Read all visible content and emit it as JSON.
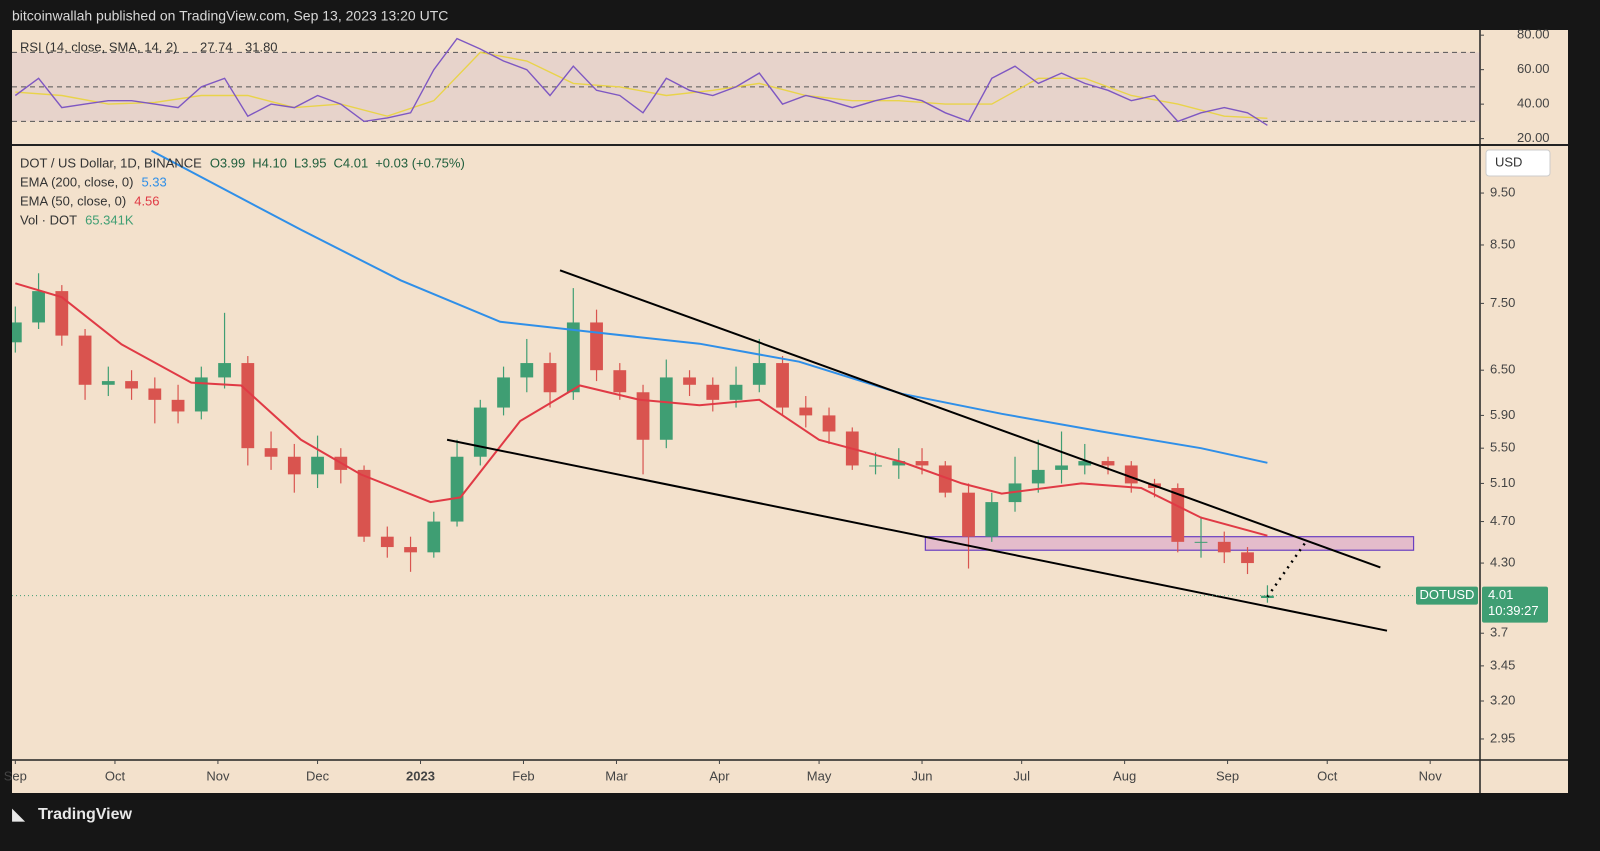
{
  "header": {
    "text": "bitcoinwallah published on TradingView.com, Sep 13, 2023 13:20 UTC"
  },
  "footer": {
    "brand": "TradingView"
  },
  "chart_data": [
    {
      "type": "rsi",
      "legend": {
        "title": "RSI (14, close, SMA, 14, 2)",
        "rsi": "27.74",
        "sma": "31.80"
      },
      "xlim": [
        -1,
        441
      ],
      "ylim": [
        16.3,
        83
      ],
      "yticks": [
        {
          "value": 80,
          "label": "80.00"
        },
        {
          "value": 60,
          "label": "60.00"
        },
        {
          "value": 40,
          "label": "40.00"
        },
        {
          "value": 20,
          "label": "20.00"
        }
      ],
      "levels": [
        70,
        50,
        30
      ],
      "series": [
        {
          "color": "#7e57c2",
          "x": [
            0,
            7,
            14,
            21,
            28,
            35,
            42,
            49,
            56,
            63,
            70,
            77,
            84,
            91,
            98,
            105,
            112,
            119,
            126,
            133,
            140,
            147,
            154,
            161,
            168,
            175,
            182,
            189,
            196,
            203,
            210,
            217,
            224,
            231,
            238,
            245,
            252,
            259,
            266,
            273,
            280,
            287,
            294,
            301,
            308,
            315,
            322,
            329,
            336,
            343,
            350,
            357,
            364,
            371,
            377
          ],
          "values": [
            45,
            55,
            38,
            40,
            42,
            42,
            40,
            38,
            50,
            55,
            33,
            40,
            38,
            45,
            40,
            30,
            32,
            35,
            60,
            78,
            72,
            65,
            60,
            45,
            62,
            48,
            45,
            35,
            55,
            48,
            45,
            50,
            58,
            40,
            45,
            42,
            38,
            42,
            45,
            42,
            35,
            30,
            55,
            62,
            52,
            58,
            52,
            48,
            42,
            45,
            30,
            35,
            38,
            35,
            27.74
          ]
        },
        {
          "color": "#e9d34a",
          "x": [
            0,
            14,
            28,
            42,
            56,
            70,
            84,
            98,
            112,
            126,
            140,
            154,
            168,
            182,
            196,
            210,
            224,
            238,
            252,
            266,
            280,
            294,
            308,
            322,
            336,
            350,
            364,
            377
          ],
          "values": [
            47,
            45,
            40,
            41,
            45,
            45,
            38,
            40,
            33,
            42,
            70,
            65,
            52,
            50,
            45,
            48,
            52,
            45,
            42,
            42,
            40,
            40,
            55,
            55,
            45,
            40,
            33,
            31.8
          ]
        }
      ]
    },
    {
      "type": "candlestick",
      "legend": {
        "symbol": "DOT / US Dollar, 1D, BINANCE",
        "ohlc": [
          "O3.99",
          "H4.10",
          "L3.95",
          "C4.01"
        ],
        "change": "+0.03 (+0.75%)",
        "vol_name": "Vol · DOT",
        "vol_value": "65.341K"
      },
      "currency": "USD",
      "symbol_tag": "DOTUSD",
      "countdown": "10:39:27",
      "up_color": "#3f9e73",
      "down_color": "#d9544f",
      "log": true,
      "xlim": [
        -1,
        441
      ],
      "xticks": [
        {
          "value": 0,
          "label": "Sep"
        },
        {
          "value": 30,
          "label": "Oct"
        },
        {
          "value": 61,
          "label": "Nov"
        },
        {
          "value": 91,
          "label": "Dec"
        },
        {
          "value": 122,
          "label": "2023"
        },
        {
          "value": 153,
          "label": "Feb"
        },
        {
          "value": 181,
          "label": "Mar"
        },
        {
          "value": 212,
          "label": "Apr"
        },
        {
          "value": 242,
          "label": "May"
        },
        {
          "value": 273,
          "label": "Jun"
        },
        {
          "value": 303,
          "label": "Jul"
        },
        {
          "value": 334,
          "label": "Aug"
        },
        {
          "value": 365,
          "label": "Sep"
        },
        {
          "value": 395,
          "label": "Oct"
        },
        {
          "value": 426,
          "label": "Nov"
        }
      ],
      "ylim": [
        2.82,
        10.53
      ],
      "yticks": [
        {
          "value": 9.5,
          "label": "9.50"
        },
        {
          "value": 8.5,
          "label": "8.50"
        },
        {
          "value": 7.5,
          "label": "7.50"
        },
        {
          "value": 6.5,
          "label": "6.50"
        },
        {
          "value": 5.9,
          "label": "5.90"
        },
        {
          "value": 5.5,
          "label": "5.50"
        },
        {
          "value": 5.1,
          "label": "5.10"
        },
        {
          "value": 4.7,
          "label": "4.70"
        },
        {
          "value": 4.3,
          "label": "4.30"
        },
        3.7,
        3.45,
        {
          "value": 3.2,
          "label": "3.20"
        },
        2.95
      ],
      "x": [
        0,
        7,
        14,
        21,
        28,
        35,
        42,
        49,
        56,
        63,
        70,
        77,
        84,
        91,
        98,
        105,
        112,
        119,
        126,
        133,
        140,
        147,
        154,
        161,
        168,
        175,
        182,
        189,
        196,
        203,
        210,
        217,
        224,
        231,
        238,
        245,
        252,
        259,
        266,
        273,
        280,
        287,
        294,
        301,
        308,
        315,
        322,
        329,
        336,
        343,
        350,
        357,
        364,
        371,
        377
      ],
      "open": [
        6.9,
        7.2,
        7.7,
        7.0,
        6.3,
        6.35,
        6.25,
        6.1,
        5.95,
        6.4,
        6.6,
        5.5,
        5.4,
        5.2,
        5.4,
        5.25,
        4.55,
        4.45,
        4.4,
        4.7,
        5.4,
        6.0,
        6.4,
        6.6,
        6.2,
        7.2,
        6.5,
        6.2,
        5.6,
        6.4,
        6.3,
        6.1,
        6.3,
        6.6,
        6.0,
        5.9,
        5.7,
        5.3,
        5.3,
        5.35,
        5.3,
        5.0,
        4.55,
        4.9,
        5.1,
        5.25,
        5.3,
        5.35,
        5.3,
        5.1,
        5.05,
        4.5,
        4.5,
        4.4,
        3.99
      ],
      "high": [
        7.45,
        8.0,
        7.8,
        7.1,
        6.55,
        6.5,
        6.4,
        6.3,
        6.55,
        7.35,
        6.7,
        5.7,
        5.55,
        5.65,
        5.5,
        5.3,
        4.65,
        4.55,
        4.8,
        5.6,
        6.1,
        6.55,
        6.95,
        6.75,
        7.75,
        7.4,
        6.6,
        6.3,
        6.65,
        6.5,
        6.4,
        6.55,
        6.95,
        6.7,
        6.15,
        6.0,
        5.75,
        5.45,
        5.5,
        5.5,
        5.35,
        5.1,
        5.0,
        5.4,
        5.6,
        5.7,
        5.55,
        5.4,
        5.35,
        5.15,
        5.1,
        4.75,
        4.6,
        4.45,
        4.1
      ],
      "low": [
        6.75,
        7.1,
        6.85,
        6.1,
        6.15,
        6.1,
        5.8,
        5.8,
        5.85,
        6.25,
        5.3,
        5.25,
        5.0,
        5.05,
        5.1,
        4.5,
        4.35,
        4.22,
        4.35,
        4.65,
        5.3,
        5.9,
        6.2,
        6.0,
        6.1,
        6.35,
        6.1,
        5.2,
        5.5,
        6.15,
        5.95,
        6.0,
        6.2,
        5.9,
        5.75,
        5.55,
        5.25,
        5.2,
        5.15,
        5.2,
        4.95,
        4.25,
        4.5,
        4.8,
        5.0,
        5.1,
        5.2,
        5.2,
        5.0,
        4.95,
        4.4,
        4.35,
        4.3,
        4.2,
        3.95
      ],
      "close": [
        7.2,
        7.7,
        7.0,
        6.3,
        6.35,
        6.25,
        6.1,
        5.95,
        6.4,
        6.6,
        5.5,
        5.4,
        5.2,
        5.4,
        5.25,
        4.55,
        4.45,
        4.4,
        4.7,
        5.4,
        6.0,
        6.4,
        6.6,
        6.2,
        7.2,
        6.5,
        6.2,
        5.6,
        6.4,
        6.3,
        6.1,
        6.3,
        6.6,
        6.0,
        5.9,
        5.7,
        5.3,
        5.3,
        5.35,
        5.3,
        5.0,
        4.55,
        4.9,
        5.1,
        5.25,
        5.3,
        5.35,
        5.3,
        5.1,
        5.05,
        4.5,
        4.5,
        4.4,
        4.3,
        4.01
      ],
      "series": [
        {
          "name": "EMA (200, close, 0)",
          "color": "#2f8fe8",
          "x": [
            41,
            86,
            116,
            146,
            176,
            206,
            236,
            267,
            297,
            327,
            357,
            377
          ],
          "values": [
            10.4,
            8.78,
            7.88,
            7.21,
            7.04,
            6.88,
            6.62,
            6.18,
            5.92,
            5.7,
            5.5,
            5.33
          ]
        },
        {
          "name": "EMA (50, close, 0)",
          "color": "#e03a45",
          "x": [
            0,
            14,
            32,
            53,
            68,
            86,
            104,
            125,
            134,
            152,
            170,
            188,
            206,
            224,
            242,
            267,
            285,
            297,
            321,
            339,
            357,
            377
          ],
          "values": [
            7.83,
            7.6,
            6.87,
            6.33,
            6.29,
            5.6,
            5.2,
            4.9,
            4.95,
            5.83,
            6.29,
            6.1,
            6.03,
            6.1,
            5.6,
            5.34,
            5.1,
            4.99,
            5.1,
            5.05,
            4.74,
            4.56
          ]
        }
      ],
      "annotations": {
        "trendlines": [
          {
            "points": [
              [
                164,
                8.05
              ],
              [
                411,
                4.26
              ]
            ]
          },
          {
            "points": [
              [
                130,
                5.6
              ],
              [
                413,
                3.72
              ]
            ]
          }
        ],
        "projection": {
          "points": [
            [
              377,
              4.0
            ],
            [
              389,
              4.52
            ]
          ]
        },
        "zone": {
          "x": [
            274,
            421
          ],
          "y": [
            4.42,
            4.55
          ]
        }
      }
    }
  ]
}
